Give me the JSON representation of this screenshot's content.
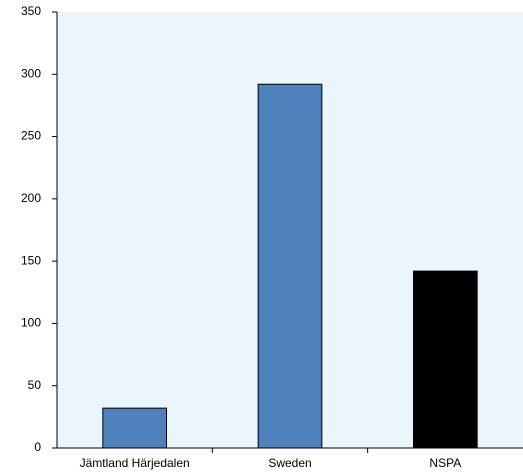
{
  "chart_data": {
    "type": "bar",
    "categories": [
      "Jämtland Härjedalen",
      "Sweden",
      "NSPA"
    ],
    "values": [
      32,
      292,
      142
    ],
    "colors": [
      "#4f81bd",
      "#4f81bd",
      "#000000"
    ],
    "ylim": [
      0,
      350
    ],
    "yticks": [
      0,
      50,
      100,
      150,
      200,
      250,
      300,
      350
    ]
  }
}
